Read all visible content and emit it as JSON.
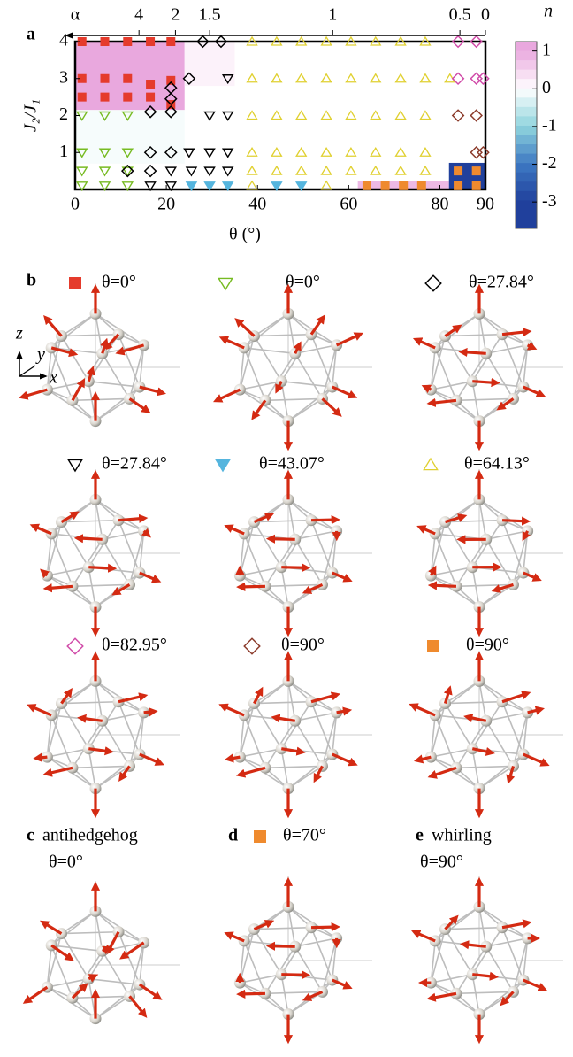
{
  "chart_data": {
    "type": "scatter",
    "panel": "a",
    "xlabel": "θ (°)",
    "ylabel": "J₂/J₁",
    "x2label": "α",
    "xlim": [
      0,
      90
    ],
    "ylim": [
      0,
      4
    ],
    "xticks": [
      0,
      20,
      40,
      60,
      80,
      90
    ],
    "yticks": [
      1,
      2,
      3,
      4
    ],
    "x2ticks": [
      {
        "value": 14,
        "label": "4"
      },
      {
        "value": 22,
        "label": "2"
      },
      {
        "value": 29.5,
        "label": "1.5"
      },
      {
        "value": 56.5,
        "label": "1"
      },
      {
        "value": 84.4,
        "label": "0.5"
      },
      {
        "value": 90,
        "label": "0"
      }
    ],
    "colorbar": {
      "label": "n",
      "clim": [
        -3.7,
        1.25
      ],
      "ticks": [
        1,
        0,
        -1,
        -2,
        -3
      ],
      "stops": [
        {
          "value": 1,
          "color": "#e9a8de"
        },
        {
          "value": 0,
          "color": "#ffffff"
        },
        {
          "value": -1,
          "color": "#8fd4dd"
        },
        {
          "value": -2,
          "color": "#3d78c2"
        },
        {
          "value": -3,
          "color": "#20409c"
        }
      ]
    },
    "regions": [
      {
        "x": [
          0,
          24
        ],
        "y": [
          2.15,
          4
        ],
        "n": 1
      },
      {
        "x": [
          24,
          35
        ],
        "y": [
          2.8,
          4
        ],
        "n": 0.15
      },
      {
        "x": [
          0,
          24
        ],
        "y": [
          0.7,
          2.15
        ],
        "n": -0.08
      },
      {
        "x": [
          62,
          82
        ],
        "y": [
          0,
          0.22
        ],
        "n": 0.8
      },
      {
        "x": [
          82,
          90
        ],
        "y": [
          0,
          0.72
        ],
        "n": -3
      }
    ],
    "series": [
      {
        "marker": "square",
        "color": "#e53b2c",
        "x": [
          1.5,
          6.5,
          11.5,
          16.5,
          21,
          1.5,
          6.5,
          11.5,
          16.5,
          21,
          1.5,
          6.5,
          11.5,
          16.5,
          21
        ],
        "values": [
          4,
          4,
          4,
          4,
          4,
          3,
          3,
          3,
          2.85,
          2.95,
          2.5,
          2.5,
          2.5,
          2.5,
          2.3
        ]
      },
      {
        "marker": "triangle-down",
        "color": "#77bb22",
        "x": [
          1.5,
          6.5,
          11.5,
          1.5,
          6.5,
          11.5,
          1.5,
          6.5,
          11.5,
          1.5,
          6.5,
          11.5
        ],
        "values": [
          2,
          2,
          2,
          1,
          1,
          1,
          0.5,
          0.5,
          0.5,
          0.1,
          0.1,
          0.1
        ]
      },
      {
        "marker": "diamond",
        "color": "#000000",
        "x": [
          28,
          32,
          25,
          21,
          21,
          16.5,
          21,
          16.5,
          21,
          11.5,
          16.5
        ],
        "values": [
          4,
          4,
          3,
          2.75,
          2.45,
          2.1,
          2.1,
          1,
          1,
          0.5,
          0.5
        ]
      },
      {
        "marker": "triangle-down",
        "color": "#000000",
        "x": [
          33.5,
          29.5,
          33.5,
          25,
          29.5,
          33.5,
          21,
          25.5,
          29.5,
          33.5,
          16.5,
          21
        ],
        "values": [
          3,
          2,
          2,
          1,
          1,
          1,
          0.5,
          0.5,
          0.5,
          0.5,
          0.1,
          0.1
        ]
      },
      {
        "marker": "triangle-down-filled",
        "color": "#55b5de",
        "x": [
          25.5,
          29.5,
          33.5,
          44.2,
          49.6
        ],
        "values": [
          0.1,
          0.1,
          0.1,
          0.1,
          0.1
        ]
      },
      {
        "marker": "triangle-up",
        "color": "#e0d030",
        "x": [
          38.8,
          44.2,
          49.6,
          55.1,
          60.5,
          65.9,
          71.4,
          76.8,
          38.8,
          44.2,
          49.6,
          55.1,
          60.5,
          65.9,
          71.4,
          76.8,
          82.2,
          38.8,
          44.2,
          49.6,
          55.1,
          60.5,
          65.9,
          71.4,
          76.8,
          38.8,
          44.2,
          49.6,
          55.1,
          60.5,
          65.9,
          71.4,
          76.8,
          38.8,
          44.2,
          49.6,
          55.1,
          60.5,
          65.9,
          71.4,
          76.8,
          38.8,
          55.1
        ],
        "values": [
          4,
          4,
          4,
          4,
          4,
          4,
          4,
          4,
          3,
          3,
          3,
          3,
          3,
          3,
          3,
          3,
          3,
          2,
          2,
          2,
          2,
          2,
          2,
          2,
          2,
          1,
          1,
          1,
          1,
          1,
          1,
          1,
          1,
          0.5,
          0.5,
          0.5,
          0.5,
          0.5,
          0.5,
          0.5,
          0.5,
          0.1,
          0.1
        ]
      },
      {
        "marker": "diamond",
        "color": "#d04aa8",
        "x": [
          84,
          88,
          84,
          88,
          89.5
        ],
        "values": [
          4,
          4,
          3,
          3,
          3
        ]
      },
      {
        "marker": "diamond",
        "color": "#8b3a2a",
        "x": [
          84,
          88,
          88,
          89.5
        ],
        "values": [
          2,
          2,
          1,
          1
        ]
      },
      {
        "marker": "square",
        "color": "#ef8a2e",
        "x": [
          64,
          68,
          72,
          76,
          84,
          88,
          84,
          88
        ],
        "values": [
          0.1,
          0.1,
          0.1,
          0.1,
          0.1,
          0.1,
          0.5,
          0.5
        ]
      }
    ]
  },
  "panel_b": {
    "letter": "b",
    "axes_glyph": [
      "z",
      "y",
      "x"
    ],
    "items": [
      {
        "marker": "square",
        "color": "#e53b2c",
        "label": "θ=0°"
      },
      {
        "marker": "triangle-down",
        "color": "#77bb22",
        "label": "θ=0°"
      },
      {
        "marker": "diamond",
        "color": "#000000",
        "label": "θ=27.84°"
      },
      {
        "marker": "triangle-down",
        "color": "#000000",
        "label": "θ=27.84°"
      },
      {
        "marker": "triangle-down-filled",
        "color": "#55b5de",
        "label": "θ=43.07°"
      },
      {
        "marker": "triangle-up",
        "color": "#e0d030",
        "label": "θ=64.13°"
      },
      {
        "marker": "diamond",
        "color": "#d04aa8",
        "label": "θ=82.95°"
      },
      {
        "marker": "diamond",
        "color": "#8b3a2a",
        "label": "θ=90°"
      },
      {
        "marker": "square",
        "color": "#ef8a2e",
        "label": "θ=90°"
      }
    ]
  },
  "panel_c": {
    "letter": "c",
    "title": "antihedgehog",
    "label": "θ=0°"
  },
  "panel_d": {
    "letter": "d",
    "marker": "square",
    "color": "#ef8a2e",
    "label": "θ=70°"
  },
  "panel_e": {
    "letter": "e",
    "title": "whirling",
    "label": "θ=90°"
  }
}
